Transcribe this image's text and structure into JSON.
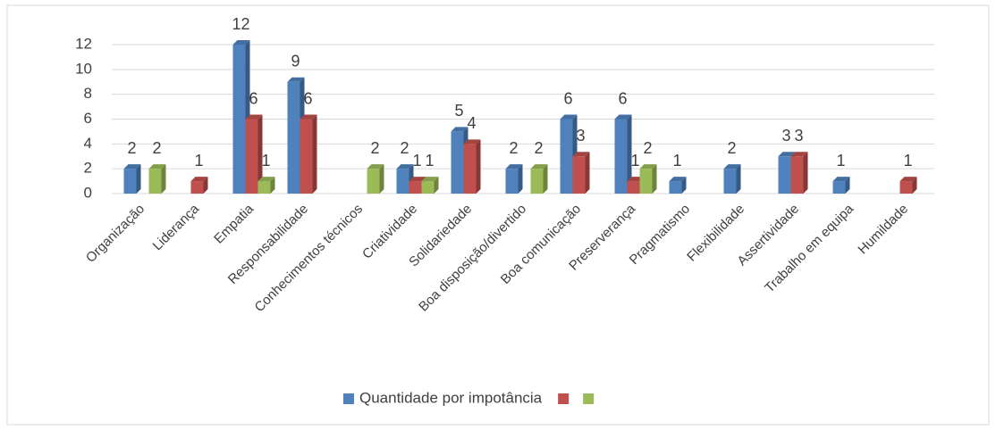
{
  "chart_data": {
    "type": "bar",
    "categories": [
      "Organização",
      "Liderança",
      "Empatia",
      "Responsabilidade",
      "Conhecimentos técnicos",
      "Criatividade",
      "Solidariedade",
      "Boa disposição/divertido",
      "Boa comunicação",
      "Preserverança",
      "Pragmatismo",
      "Flexibilidade",
      "Assertividade",
      "Trabalho em equipa",
      "Humildade"
    ],
    "series": [
      {
        "name": "Quantidade por impotância",
        "color": "#4f81bd",
        "values": [
          2,
          null,
          12,
          9,
          null,
          2,
          5,
          2,
          6,
          6,
          1,
          2,
          3,
          1,
          null
        ]
      },
      {
        "color": "#c0504d",
        "values": [
          null,
          1,
          6,
          6,
          null,
          1,
          4,
          null,
          3,
          1,
          null,
          null,
          3,
          null,
          1
        ]
      },
      {
        "color": "#9bbb59",
        "values": [
          2,
          null,
          1,
          null,
          2,
          1,
          null,
          2,
          null,
          2,
          null,
          null,
          null,
          null,
          null
        ]
      }
    ],
    "ylim": [
      0,
      12
    ],
    "yticks": [
      0,
      2,
      4,
      6,
      8,
      10,
      12
    ],
    "grid": true,
    "legend": "bottom"
  }
}
